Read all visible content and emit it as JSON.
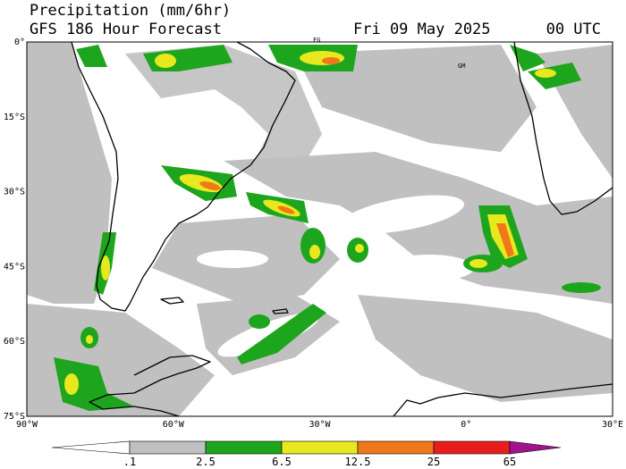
{
  "header": {
    "title": "Precipitation (mm/6hr)",
    "subtitle": "GFS 186 Hour Forecast",
    "date": "Fri 09 May 2025",
    "time": "00 UTC"
  },
  "map": {
    "lat_labels": [
      "0°",
      "15°S",
      "30°S",
      "45°S",
      "60°S",
      "75°S"
    ],
    "lon_labels": [
      "90°W",
      "60°W",
      "30°W",
      "0°",
      "30°E"
    ],
    "place_labels": [
      "FG",
      "GM"
    ]
  },
  "colorbar": {
    "labels": [
      ".1",
      "2.5",
      "6.5",
      "12.5",
      "25",
      "65"
    ],
    "colors": [
      "#ffffff",
      "#c0c0c0",
      "#1ea51e",
      "#e8e81e",
      "#f07818",
      "#e81e1e",
      "#a0148c"
    ]
  }
}
